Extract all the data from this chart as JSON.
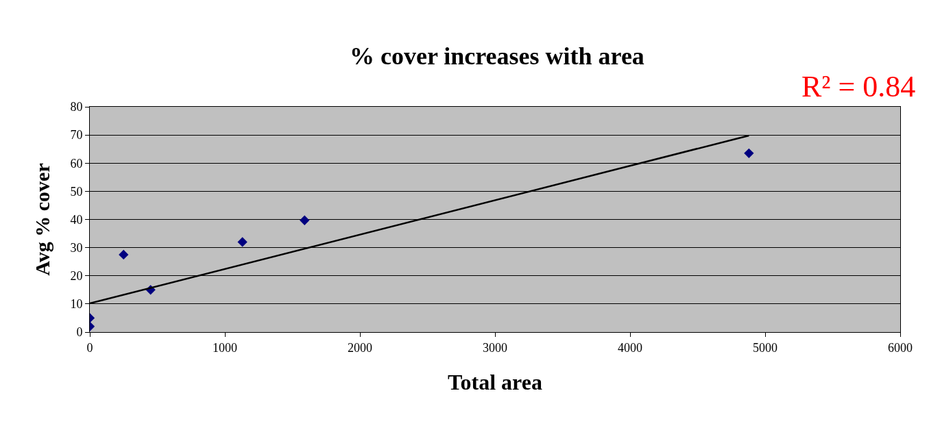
{
  "chart_data": {
    "type": "scatter",
    "title": "% cover increases with area",
    "xlabel": "Total area",
    "ylabel": "Avg % cover",
    "annotations": [
      "R² = 0.84"
    ],
    "xlim": [
      0,
      6000
    ],
    "xticks": [
      0,
      1000,
      2000,
      3000,
      4000,
      5000,
      6000
    ],
    "ylim": [
      0,
      80
    ],
    "yticks": [
      0,
      10,
      20,
      30,
      40,
      50,
      60,
      70,
      80
    ],
    "grid": "y",
    "marker": "diamond",
    "series": [
      {
        "color": "#000080",
        "x": [
          0,
          0,
          250,
          450,
          1130,
          1590,
          4880
        ],
        "values": [
          5,
          2,
          27.5,
          15,
          32,
          39.7,
          63.5
        ]
      },
      {
        "type": "line",
        "color": "#000000",
        "marker": "none",
        "line_style": "solid",
        "x": [
          0,
          4880
        ],
        "values": [
          10.2,
          69.8
        ]
      }
    ]
  }
}
